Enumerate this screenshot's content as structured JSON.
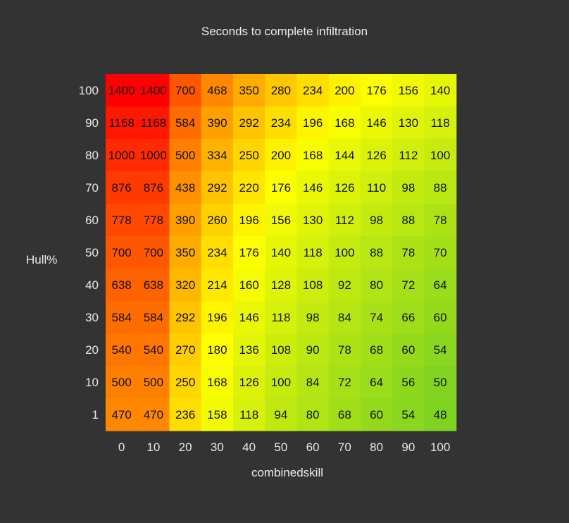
{
  "chart_data": {
    "type": "heatmap",
    "title": "Seconds to complete infiltration",
    "xlabel": "combinedskill",
    "ylabel": "Hull%",
    "x_categories": [
      "0",
      "10",
      "20",
      "30",
      "40",
      "50",
      "60",
      "70",
      "80",
      "90",
      "100"
    ],
    "y_categories": [
      "100",
      "90",
      "80",
      "70",
      "60",
      "50",
      "40",
      "30",
      "20",
      "10",
      "1"
    ],
    "values": [
      [
        1400,
        1400,
        700,
        468,
        350,
        280,
        234,
        200,
        176,
        156,
        140
      ],
      [
        1168,
        1168,
        584,
        390,
        292,
        234,
        196,
        168,
        146,
        130,
        118
      ],
      [
        1000,
        1000,
        500,
        334,
        250,
        200,
        168,
        144,
        126,
        112,
        100
      ],
      [
        876,
        876,
        438,
        292,
        220,
        176,
        146,
        126,
        110,
        98,
        88
      ],
      [
        778,
        778,
        390,
        260,
        196,
        156,
        130,
        112,
        98,
        88,
        78
      ],
      [
        700,
        700,
        350,
        234,
        176,
        140,
        118,
        100,
        88,
        78,
        70
      ],
      [
        638,
        638,
        320,
        214,
        160,
        128,
        108,
        92,
        80,
        72,
        64
      ],
      [
        584,
        584,
        292,
        196,
        146,
        118,
        98,
        84,
        74,
        66,
        60
      ],
      [
        540,
        540,
        270,
        180,
        136,
        108,
        90,
        78,
        68,
        60,
        54
      ],
      [
        500,
        500,
        250,
        168,
        126,
        100,
        84,
        72,
        64,
        56,
        50
      ],
      [
        470,
        470,
        236,
        158,
        118,
        94,
        80,
        68,
        60,
        54,
        48
      ]
    ],
    "colorscale": [
      "#ff0000",
      "#ffff00",
      "#7ed321"
    ],
    "legend": "none"
  }
}
